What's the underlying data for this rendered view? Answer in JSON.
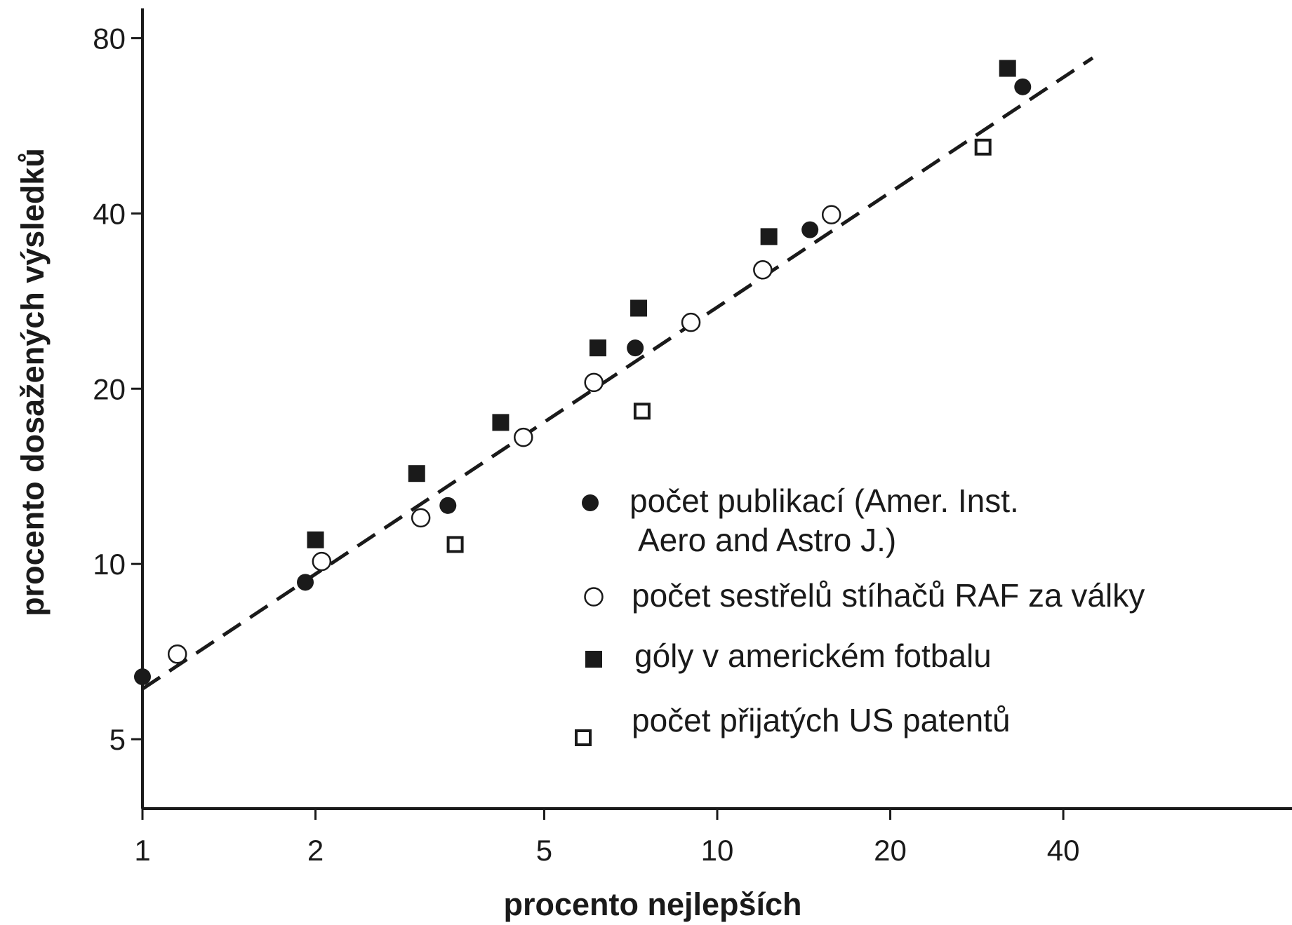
{
  "chart_data": {
    "type": "scatter",
    "title": "",
    "xlabel": "procento nejlepších",
    "ylabel": "procento dosažených výsledků",
    "x_scale": "log",
    "y_scale": "log",
    "xlim": [
      1,
      100
    ],
    "ylim": [
      3.8,
      90
    ],
    "x_ticks": [
      1,
      2,
      5,
      10,
      20,
      40
    ],
    "x_tick_labels": [
      "1",
      "2",
      "5",
      "10",
      "20",
      "40"
    ],
    "y_ticks": [
      5,
      10,
      20,
      40,
      80
    ],
    "y_tick_labels": [
      "5",
      "10",
      "20",
      "40",
      "80"
    ],
    "grid": false,
    "legend_position": "lower-right",
    "series": [
      {
        "name": "počet publikací (Amer. Inst. Aero and Astro J.)",
        "name_lines": [
          "počet publikací (Amer. Inst.",
          "Aero and Astro J.)"
        ],
        "marker": "filled-circle",
        "points": [
          [
            1.0,
            6.4
          ],
          [
            1.92,
            9.3
          ],
          [
            3.4,
            12.6
          ],
          [
            7.2,
            23.5
          ],
          [
            14.5,
            37.5
          ],
          [
            34,
            66
          ]
        ]
      },
      {
        "name": "počet sestřelů stíhačů RAF za války",
        "name_lines": [
          "počet sestřelů stíhačů RAF za války"
        ],
        "marker": "open-circle",
        "points": [
          [
            1.15,
            7.0
          ],
          [
            2.05,
            10.1
          ],
          [
            3.05,
            12.0
          ],
          [
            4.6,
            16.5
          ],
          [
            6.1,
            20.5
          ],
          [
            9.0,
            26.0
          ],
          [
            12.0,
            32.0
          ],
          [
            15.8,
            39.8
          ]
        ]
      },
      {
        "name": "góly v americkém fotbalu",
        "name_lines": [
          "góly v americkém fotbalu"
        ],
        "marker": "filled-square",
        "points": [
          [
            2.0,
            11.0
          ],
          [
            3.0,
            14.3
          ],
          [
            4.2,
            17.5
          ],
          [
            6.2,
            23.5
          ],
          [
            7.3,
            27.5
          ],
          [
            12.3,
            36.5
          ],
          [
            32,
            71
          ]
        ]
      },
      {
        "name": "počet přijatých US patentů",
        "name_lines": [
          "počet přijatých US patentů"
        ],
        "marker": "open-square",
        "points": [
          [
            3.5,
            10.8
          ],
          [
            7.4,
            18.3
          ],
          [
            29,
            52
          ]
        ]
      },
      {
        "name": "",
        "marker": "dashed-line",
        "points": [
          [
            1.0,
            6.1
          ],
          [
            45,
            74
          ]
        ]
      }
    ],
    "colors": {
      "ink": "#1a1a1a",
      "background": "#ffffff"
    }
  }
}
